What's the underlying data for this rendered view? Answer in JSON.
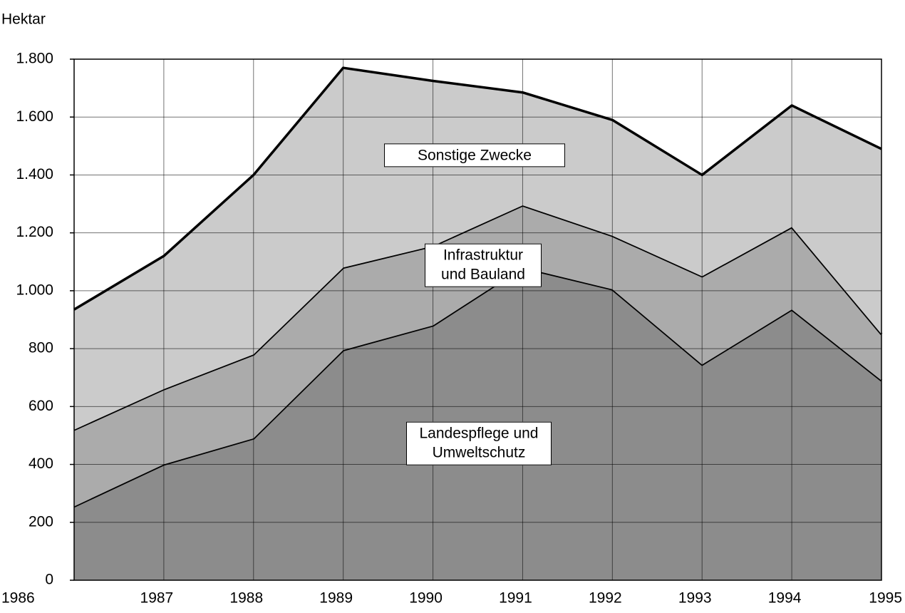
{
  "chart_data": {
    "type": "stacked_area",
    "y_label": "Hektar",
    "categories": [
      "1986",
      "1987",
      "1988",
      "1989",
      "1990",
      "1991",
      "1992",
      "1993",
      "1994",
      "1995"
    ],
    "series": [
      {
        "name": "Landespflege und Umweltschutz",
        "color": "#8c8c8c",
        "values": [
          255,
          400,
          490,
          795,
          880,
          1080,
          1005,
          745,
          935,
          690
        ]
      },
      {
        "name": "Infrastruktur und Bauland",
        "color": "#ababab",
        "values": [
          265,
          260,
          290,
          285,
          275,
          215,
          185,
          305,
          285,
          160
        ]
      },
      {
        "name": "Sonstige Zwecke",
        "color": "#cbcbcb",
        "values": [
          415,
          460,
          620,
          690,
          570,
          390,
          400,
          350,
          420,
          640
        ]
      }
    ],
    "ylim": [
      0,
      1800
    ],
    "yticks": [
      0,
      200,
      400,
      600,
      800,
      {
        "value": 1000,
        "label": "1.000"
      },
      {
        "value": 1200,
        "label": "1.200"
      },
      {
        "value": 1400,
        "label": "1.400"
      },
      {
        "value": 1600,
        "label": "1.600"
      },
      {
        "value": 1800,
        "label": "1.800"
      }
    ],
    "grid": true
  }
}
